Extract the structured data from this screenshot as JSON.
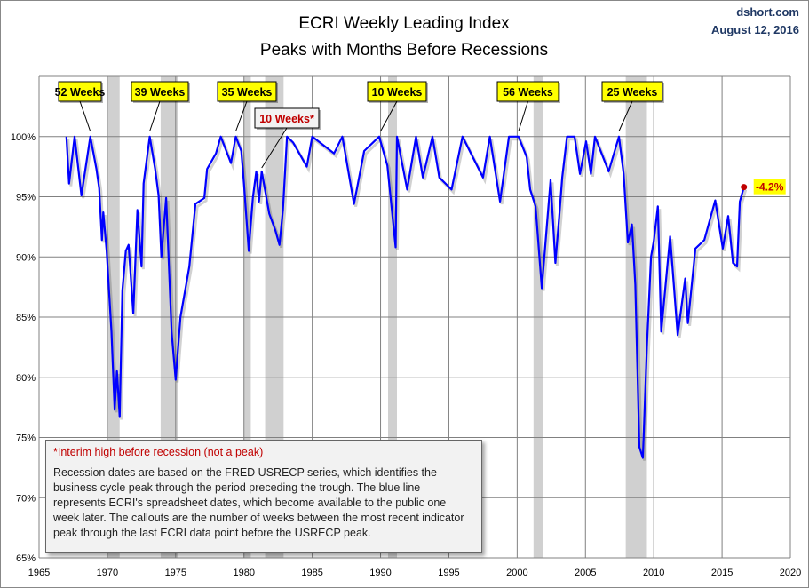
{
  "chart_data": {
    "type": "line",
    "title": "ECRI Weekly Leading Index",
    "subtitle": "Peaks with Months Before Recessions",
    "source": "dshort.com",
    "date": "August 12, 2016",
    "xlim": [
      1965,
      2020
    ],
    "ylim": [
      65,
      105
    ],
    "x_ticks": [
      1965,
      1970,
      1975,
      1980,
      1985,
      1990,
      1995,
      2000,
      2005,
      2010,
      2015,
      2020
    ],
    "y_ticks": [
      65,
      70,
      75,
      80,
      85,
      90,
      95,
      100
    ],
    "y_tick_labels": [
      "65%",
      "70%",
      "75%",
      "80%",
      "85%",
      "90%",
      "95%",
      "100%"
    ],
    "grid": true,
    "colors": {
      "line": "#0000ff",
      "recession": "#d0d0d0",
      "callout": "#ffff00",
      "marker": "#c00000"
    },
    "recessions": [
      [
        1969.95,
        1970.9
      ],
      [
        1973.9,
        1975.2
      ],
      [
        1980.0,
        1980.5
      ],
      [
        1981.55,
        1982.9
      ],
      [
        1990.55,
        1991.2
      ],
      [
        2001.2,
        2001.9
      ],
      [
        2007.95,
        2009.5
      ]
    ],
    "series": [
      {
        "points": [
          [
            1967.0,
            100
          ],
          [
            1967.2,
            96.1
          ],
          [
            1967.6,
            100
          ],
          [
            1968.1,
            95.1
          ],
          [
            1968.75,
            100
          ],
          [
            1969.2,
            97.3
          ],
          [
            1969.4,
            95.7
          ],
          [
            1969.6,
            91.4
          ],
          [
            1969.7,
            93.7
          ],
          [
            1969.95,
            90.5
          ],
          [
            1970.3,
            83.8
          ],
          [
            1970.53,
            77.3
          ],
          [
            1970.7,
            80.5
          ],
          [
            1970.9,
            76.7
          ],
          [
            1971.1,
            87.2
          ],
          [
            1971.35,
            90.5
          ],
          [
            1971.55,
            91.0
          ],
          [
            1971.9,
            85.3
          ],
          [
            1972.2,
            93.9
          ],
          [
            1972.5,
            89.2
          ],
          [
            1972.65,
            96.1
          ],
          [
            1973.1,
            100
          ],
          [
            1973.5,
            97.3
          ],
          [
            1973.75,
            95.1
          ],
          [
            1973.95,
            90.0
          ],
          [
            1974.3,
            94.9
          ],
          [
            1974.7,
            83.8
          ],
          [
            1975.0,
            79.8
          ],
          [
            1975.35,
            85.0
          ],
          [
            1976.0,
            89.2
          ],
          [
            1976.45,
            94.4
          ],
          [
            1977.1,
            94.9
          ],
          [
            1977.3,
            97.3
          ],
          [
            1977.95,
            98.6
          ],
          [
            1978.3,
            100
          ],
          [
            1979.05,
            97.8
          ],
          [
            1979.4,
            100
          ],
          [
            1979.8,
            98.8
          ],
          [
            1980.0,
            96.1
          ],
          [
            1980.35,
            90.5
          ],
          [
            1980.65,
            94.9
          ],
          [
            1980.9,
            97.1
          ],
          [
            1981.1,
            94.6
          ],
          [
            1981.3,
            97.1
          ],
          [
            1981.85,
            93.6
          ],
          [
            1982.3,
            92.2
          ],
          [
            1982.6,
            91.0
          ],
          [
            1982.85,
            93.9
          ],
          [
            1983.15,
            100
          ],
          [
            1983.6,
            99.5
          ],
          [
            1984.6,
            97.5
          ],
          [
            1985.0,
            100
          ],
          [
            1986.6,
            98.6
          ],
          [
            1987.2,
            100
          ],
          [
            1988.05,
            94.4
          ],
          [
            1988.8,
            98.8
          ],
          [
            1989.9,
            100
          ],
          [
            1990.5,
            97.6
          ],
          [
            1991.1,
            90.8
          ],
          [
            1991.2,
            100
          ],
          [
            1991.95,
            95.6
          ],
          [
            1992.6,
            100
          ],
          [
            1993.1,
            96.6
          ],
          [
            1993.8,
            100
          ],
          [
            1994.3,
            96.6
          ],
          [
            1995.2,
            95.6
          ],
          [
            1996.0,
            100
          ],
          [
            1997.5,
            96.6
          ],
          [
            1998.0,
            100
          ],
          [
            1998.75,
            94.6
          ],
          [
            1999.4,
            100
          ],
          [
            2000.1,
            100
          ],
          [
            2000.7,
            98.3
          ],
          [
            2000.95,
            95.6
          ],
          [
            2001.35,
            94.2
          ],
          [
            2001.8,
            87.4
          ],
          [
            2002.45,
            96.4
          ],
          [
            2002.8,
            89.5
          ],
          [
            2003.1,
            93.6
          ],
          [
            2003.3,
            96.6
          ],
          [
            2003.65,
            100
          ],
          [
            2004.2,
            100
          ],
          [
            2004.6,
            96.9
          ],
          [
            2005.05,
            99.6
          ],
          [
            2005.4,
            96.9
          ],
          [
            2005.7,
            100
          ],
          [
            2006.7,
            97.1
          ],
          [
            2007.45,
            100
          ],
          [
            2007.8,
            96.9
          ],
          [
            2008.1,
            91.2
          ],
          [
            2008.4,
            92.7
          ],
          [
            2008.65,
            87.7
          ],
          [
            2008.95,
            74.2
          ],
          [
            2009.2,
            73.3
          ],
          [
            2009.5,
            82.6
          ],
          [
            2009.8,
            90.0
          ],
          [
            2010.0,
            91.3
          ],
          [
            2010.3,
            94.2
          ],
          [
            2010.55,
            83.8
          ],
          [
            2011.2,
            91.7
          ],
          [
            2011.75,
            83.5
          ],
          [
            2012.3,
            88.2
          ],
          [
            2012.5,
            84.5
          ],
          [
            2013.05,
            90.7
          ],
          [
            2013.7,
            91.4
          ],
          [
            2014.5,
            94.7
          ],
          [
            2015.05,
            90.7
          ],
          [
            2015.45,
            93.4
          ],
          [
            2015.8,
            89.5
          ],
          [
            2016.1,
            89.2
          ],
          [
            2016.3,
            94.6
          ],
          [
            2016.6,
            95.8
          ]
        ]
      }
    ],
    "last_point_label": "-4.2%",
    "callouts": [
      {
        "label": "52 Weeks",
        "peak_year": 1968.75,
        "interim": false
      },
      {
        "label": "39 Weeks",
        "peak_year": 1973.1,
        "interim": false
      },
      {
        "label": "35 Weeks",
        "peak_year": 1979.4,
        "interim": false
      },
      {
        "label": "10 Weeks*",
        "peak_year": 1981.3,
        "interim": true
      },
      {
        "label": "10 Weeks",
        "peak_year": 1990.0,
        "interim": false
      },
      {
        "label": "56 Weeks",
        "peak_year": 2000.1,
        "interim": false
      },
      {
        "label": "25 Weeks",
        "peak_year": 2007.45,
        "interim": false
      }
    ],
    "note": {
      "heading": "*Interim high before recession (not a peak)",
      "body": "Recession dates are based on the FRED USRECP series, which identifies the business cycle peak through the period preceding the trough. The blue line represents ECRI's spreadsheet dates, which become available to the public one week later. The callouts are the number of weeks between the most recent indicator peak through the last ECRI data point before the USRECP peak."
    }
  }
}
